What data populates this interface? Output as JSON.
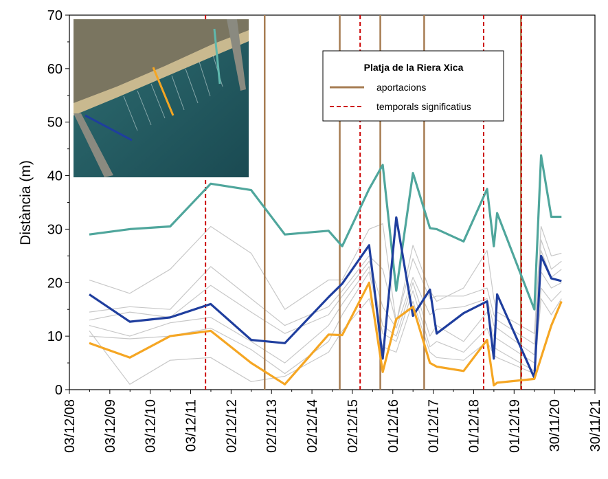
{
  "chart_data": {
    "type": "line",
    "title": "",
    "xlabel": "",
    "ylabel": "Distància (m)",
    "ylim": [
      0,
      70
    ],
    "yticks": [
      "0",
      "10",
      "20",
      "30",
      "40",
      "50",
      "60",
      "70"
    ],
    "xlim": [
      "2008-12-03",
      "2021-11-30"
    ],
    "xtick_labels": [
      "03/12/08",
      "03/12/09",
      "03/12/10",
      "03/12/11",
      "02/12/12",
      "02/12/13",
      "02/12/14",
      "02/12/15",
      "01/12/16",
      "01/12/17",
      "01/12/18",
      "01/12/19",
      "30/11/20",
      "30/11/21"
    ],
    "legend": {
      "title": "Platja de la Riera Xica",
      "placement": "top-right",
      "items": [
        {
          "label": "aportacions",
          "color": "#a67c52",
          "style": "solid"
        },
        {
          "label": "temporals significatius",
          "color": "#cc0000",
          "style": "dashed"
        }
      ]
    },
    "aportacions_dates": [
      "2013-10-01",
      "2015-08-10",
      "2016-08-10",
      "2017-09-10",
      "2020-02-01"
    ],
    "temporals_dates": [
      "2012-04-15",
      "2016-02-10",
      "2019-03-01",
      "2020-02-05"
    ],
    "series": [
      {
        "color": "#4fa69c",
        "width": 3,
        "x": [
          "2009-06-01",
          "2010-06-01",
          "2011-06-01",
          "2012-06-01",
          "2013-06-01",
          "2014-04-01",
          "2015-05-01",
          "2015-09-01",
          "2016-05-01",
          "2016-09-01",
          "2017-01-01",
          "2017-06-01",
          "2017-11-01",
          "2018-01-01",
          "2018-09-01",
          "2019-04-01",
          "2019-06-01",
          "2019-07-01",
          "2020-06-01",
          "2020-08-01",
          "2020-11-01",
          "2021-02-01"
        ],
        "values": [
          29,
          30,
          30.5,
          38.5,
          37.3,
          29,
          29.7,
          26.8,
          37.5,
          42,
          18.5,
          40.5,
          30.2,
          30,
          27.7,
          37.5,
          26.8,
          33,
          15,
          43.8,
          32.3,
          32.3
        ]
      },
      {
        "color": "#1f3e9e",
        "width": 3,
        "x": [
          "2009-06-01",
          "2010-06-01",
          "2011-06-01",
          "2012-06-01",
          "2013-06-01",
          "2014-04-01",
          "2015-05-01",
          "2015-09-01",
          "2016-05-01",
          "2016-09-01",
          "2017-01-01",
          "2017-06-01",
          "2017-11-01",
          "2018-01-01",
          "2018-09-01",
          "2019-04-01",
          "2019-06-01",
          "2019-07-01",
          "2020-06-01",
          "2020-08-01",
          "2020-11-01",
          "2021-02-01"
        ],
        "values": [
          17.8,
          12.7,
          13.5,
          16,
          9.3,
          8.7,
          17.3,
          19.8,
          27,
          5.8,
          32.2,
          13.8,
          18.7,
          10.5,
          14.3,
          16.5,
          5.8,
          17.8,
          2.2,
          25,
          20.8,
          20.3
        ]
      },
      {
        "color": "#f5a623",
        "width": 3,
        "x": [
          "2009-06-01",
          "2010-06-01",
          "2011-06-01",
          "2012-06-01",
          "2013-06-01",
          "2014-04-01",
          "2015-05-01",
          "2015-09-01",
          "2016-05-01",
          "2016-09-01",
          "2017-01-01",
          "2017-06-01",
          "2017-11-01",
          "2018-01-01",
          "2018-09-01",
          "2019-04-01",
          "2019-06-01",
          "2019-07-01",
          "2020-06-01",
          "2020-08-01",
          "2020-11-01",
          "2021-02-01"
        ],
        "values": [
          8.7,
          6,
          10,
          11,
          5,
          1,
          10.3,
          10.2,
          20,
          3.3,
          13.2,
          15.5,
          5,
          4.3,
          3.5,
          9.3,
          0.8,
          1.3,
          2,
          6,
          12,
          16.5
        ]
      },
      {
        "color": "#c8c8c8",
        "width": 1,
        "x": [
          "2009-06-01",
          "2010-06-01",
          "2011-06-01",
          "2012-06-01",
          "2013-06-01",
          "2014-04-01",
          "2015-05-01",
          "2015-09-01",
          "2016-05-01",
          "2016-09-01",
          "2017-01-01",
          "2017-06-01",
          "2017-11-01",
          "2018-01-01",
          "2018-09-01",
          "2019-04-01",
          "2019-06-01",
          "2019-07-01",
          "2020-06-01",
          "2020-08-01",
          "2020-11-01",
          "2021-02-01"
        ],
        "values": [
          20.5,
          18,
          22.5,
          30.5,
          25.5,
          15,
          20.5,
          20.5,
          30,
          31,
          12.5,
          27,
          18.5,
          16.5,
          19,
          26,
          17,
          14.5,
          10.5,
          30.5,
          25,
          25.5
        ]
      },
      {
        "color": "#c8c8c8",
        "width": 1,
        "x": [
          "2009-06-01",
          "2010-06-01",
          "2011-06-01",
          "2012-06-01",
          "2013-06-01",
          "2014-04-01",
          "2015-05-01",
          "2015-09-01",
          "2016-05-01",
          "2016-09-01",
          "2017-01-01",
          "2017-06-01",
          "2017-11-01",
          "2018-01-01",
          "2018-09-01",
          "2019-04-01",
          "2019-06-01",
          "2019-07-01",
          "2020-06-01",
          "2020-08-01",
          "2020-11-01",
          "2021-02-01"
        ],
        "values": [
          14.5,
          15.5,
          15,
          23,
          17,
          12,
          15.5,
          18.5,
          25,
          22.5,
          12.5,
          24.5,
          17,
          17.5,
          17.5,
          19,
          14,
          13,
          8.5,
          28,
          22.5,
          24
        ]
      },
      {
        "color": "#c8c8c8",
        "width": 1,
        "x": [
          "2009-06-01",
          "2010-06-01",
          "2011-06-01",
          "2012-06-01",
          "2013-06-01",
          "2014-04-01",
          "2015-05-01",
          "2015-09-01",
          "2016-05-01",
          "2016-09-01",
          "2017-01-01",
          "2017-06-01",
          "2017-11-01",
          "2018-01-01",
          "2018-09-01",
          "2019-04-01",
          "2019-06-01",
          "2019-07-01",
          "2020-06-01",
          "2020-08-01",
          "2020-11-01",
          "2021-02-01"
        ],
        "values": [
          13,
          14.5,
          13.5,
          19.5,
          14.5,
          10.5,
          14,
          17.5,
          24,
          15.5,
          11.5,
          21,
          14,
          15,
          15.5,
          17,
          12,
          11.5,
          6.5,
          26,
          21,
          22.5
        ]
      },
      {
        "color": "#c8c8c8",
        "width": 1,
        "x": [
          "2009-06-01",
          "2010-06-01",
          "2011-06-01",
          "2012-06-01",
          "2013-06-01",
          "2014-04-01",
          "2015-05-01",
          "2015-09-01",
          "2016-05-01",
          "2016-09-01",
          "2017-01-01",
          "2017-06-01",
          "2017-11-01",
          "2018-01-01",
          "2018-09-01",
          "2019-04-01",
          "2019-06-01",
          "2019-07-01",
          "2020-06-01",
          "2020-08-01",
          "2020-11-01",
          "2021-02-01"
        ],
        "values": [
          12,
          10,
          12.5,
          13.5,
          9,
          5,
          12,
          16,
          23,
          12,
          10,
          20,
          10,
          12,
          9,
          14.5,
          10,
          9.5,
          5,
          22,
          19,
          20
        ]
      },
      {
        "color": "#c8c8c8",
        "width": 1,
        "x": [
          "2009-06-01",
          "2010-06-01",
          "2011-06-01",
          "2012-06-01",
          "2013-06-01",
          "2014-04-01",
          "2015-05-01",
          "2015-09-01",
          "2016-05-01",
          "2016-09-01",
          "2017-01-01",
          "2017-06-01",
          "2017-11-01",
          "2018-01-01",
          "2018-09-01",
          "2019-04-01",
          "2019-06-01",
          "2019-07-01",
          "2020-06-01",
          "2020-08-01",
          "2020-11-01",
          "2021-02-01"
        ],
        "values": [
          10,
          9.5,
          10,
          11.5,
          7.5,
          3,
          9,
          14,
          22,
          10.5,
          9,
          18.5,
          8,
          9,
          7,
          11.5,
          8,
          7.5,
          3.5,
          19,
          16.5,
          18.5
        ]
      },
      {
        "color": "#c8c8c8",
        "width": 1,
        "x": [
          "2009-06-01",
          "2010-06-01",
          "2011-06-01",
          "2012-06-01",
          "2013-06-01",
          "2014-04-01",
          "2015-05-01",
          "2015-09-01",
          "2016-05-01",
          "2016-09-01",
          "2017-01-01",
          "2017-06-01",
          "2017-11-01",
          "2018-01-01",
          "2018-09-01",
          "2019-04-01",
          "2019-06-01",
          "2019-07-01",
          "2020-06-01",
          "2020-08-01",
          "2020-11-01",
          "2021-02-01"
        ],
        "values": [
          11,
          1,
          5.5,
          6,
          1.5,
          2.5,
          7,
          11,
          17,
          8,
          7,
          16.5,
          7,
          6,
          5.5,
          9,
          6.5,
          6,
          3,
          17,
          14,
          17
        ]
      }
    ]
  }
}
